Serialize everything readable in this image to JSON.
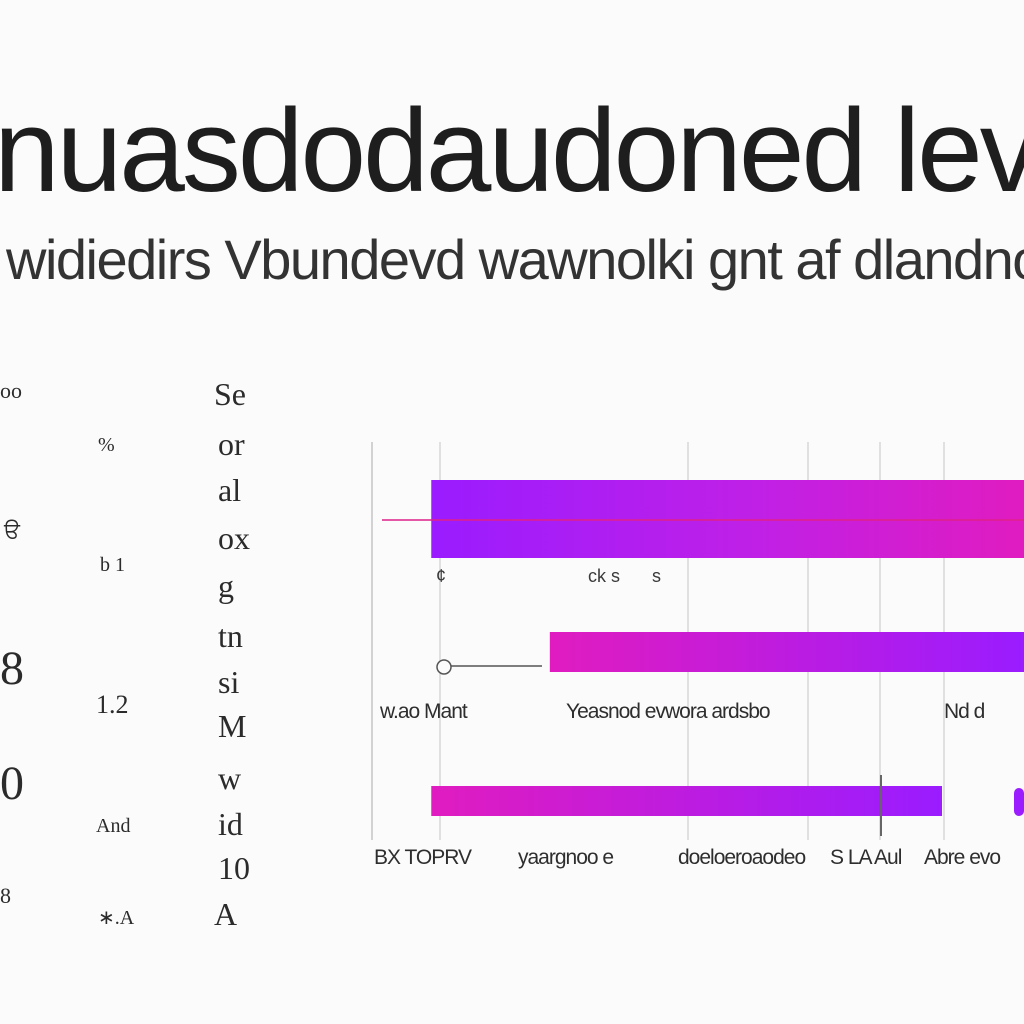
{
  "header": {
    "title": "nuasdodaudoned levr",
    "subtitle": "widiedirs Vbundevd wawnolki gnt af dlandnolae P"
  },
  "row_labels": {
    "col_a": [
      "oo",
      "ੳ",
      "8",
      "0",
      "8"
    ],
    "col_b": [
      "%",
      "b 1",
      "1.2",
      "And",
      "∗.A"
    ],
    "col_c": [
      "Se",
      "or",
      "al",
      "ox",
      "g",
      "tn",
      "si",
      "M",
      "w",
      "id",
      "10",
      "A"
    ]
  },
  "chart_data": {
    "type": "bar",
    "orientation": "horizontal",
    "colors": {
      "bar_start": "#9a1cff",
      "bar_mid": "#c020e6",
      "bar_end": "#e01cc0",
      "gridline": "#9a9a9a"
    },
    "series": [
      {
        "start": 1,
        "end": 11
      },
      {
        "start": 3,
        "end": 11
      },
      {
        "start": 1,
        "end": 9
      }
    ],
    "xlim": [
      0,
      11
    ],
    "row_annotations": [
      "¢",
      "ck s",
      "s"
    ],
    "category_labels": [
      "w.ao Mant",
      "Yeasnod evwora ardsbo",
      "Nd d"
    ],
    "tick_labels": [
      "BX TOPRV",
      "yaargnoo e",
      "doeloeroaodeo",
      "S LA Aul",
      "Abre evo"
    ]
  }
}
